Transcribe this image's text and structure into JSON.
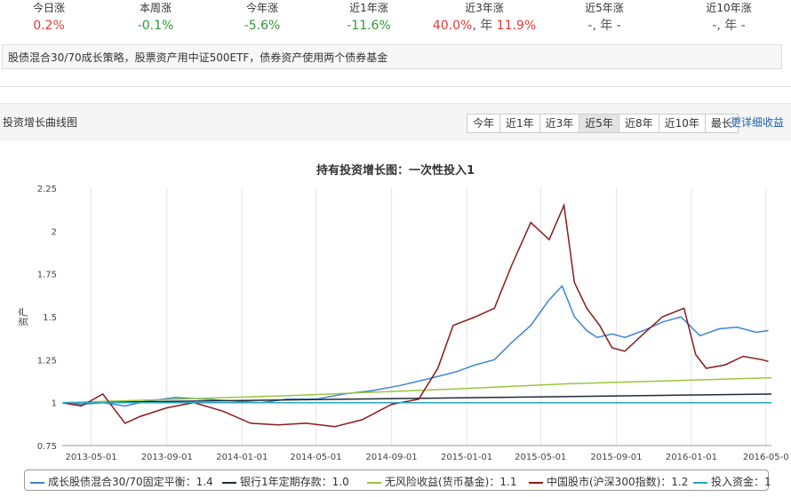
{
  "stats": [
    {
      "label": "今日涨",
      "value": "0.2%",
      "color": "red"
    },
    {
      "label": "本周涨",
      "value": "-0.1%",
      "color": "green"
    },
    {
      "label": "今年涨",
      "value": "-5.6%",
      "color": "green"
    },
    {
      "label": "近1年涨",
      "value": "-11.6%",
      "color": "green"
    },
    {
      "label": "近3年涨",
      "value": "40.0%",
      "value2": "年",
      "value3": "11.9%",
      "color": "red"
    },
    {
      "label": "近5年涨",
      "value": "-, 年 -",
      "color": "gray"
    },
    {
      "label": "近10年涨",
      "value": "-, 年 -",
      "color": "gray"
    }
  ],
  "description": "股债混合30/70成长策略，股票资产用中证500ETF，债券资产使用两个债券基金",
  "section_title": "投资增长曲线图",
  "range_buttons": [
    "今年",
    "近1年",
    "近3年",
    "近5年",
    "近8年",
    "近10年",
    "最长"
  ],
  "active_range": "近5年",
  "more_link": "更详细收益",
  "chart_data": {
    "type": "line",
    "title": "持有投资增长图：一次性投入1",
    "ylabel": "资产",
    "ylim": [
      0.75,
      2.25
    ],
    "yticks": [
      "0.75",
      "1",
      "1.25",
      "1.5",
      "1.75",
      "2",
      "2.25"
    ],
    "xlim": [
      "2013-03-15",
      "2016-05-10"
    ],
    "xticks": [
      "2013-05-01",
      "2013-09-01",
      "2014-01-01",
      "2014-05-01",
      "2014-09-01",
      "2015-01-01",
      "2015-05-01",
      "2015-09-01",
      "2016-01-01",
      "2016-05-0"
    ],
    "grid": "vertical",
    "legend": "bottom",
    "series": [
      {
        "name": "成长股债混合30/70固定平衡：1.4",
        "color": "#3b84d6",
        "x": [
          "2013-03-15",
          "2013-04-15",
          "2013-05-20",
          "2013-06-25",
          "2013-08-01",
          "2013-09-15",
          "2013-11-01",
          "2013-12-15",
          "2014-02-01",
          "2014-03-15",
          "2014-05-01",
          "2014-06-15",
          "2014-08-01",
          "2014-09-15",
          "2014-11-01",
          "2014-12-15",
          "2015-01-15",
          "2015-02-15",
          "2015-03-15",
          "2015-04-15",
          "2015-05-15",
          "2015-06-05",
          "2015-06-25",
          "2015-07-15",
          "2015-08-01",
          "2015-08-25",
          "2015-09-15",
          "2015-10-15",
          "2015-11-15",
          "2015-12-15",
          "2016-01-15",
          "2016-02-15",
          "2016-03-15",
          "2016-04-15",
          "2016-05-05"
        ],
        "y": [
          1.0,
          0.99,
          1.0,
          0.98,
          1.01,
          1.03,
          1.02,
          1.01,
          1.0,
          1.02,
          1.02,
          1.05,
          1.07,
          1.1,
          1.14,
          1.18,
          1.22,
          1.25,
          1.35,
          1.45,
          1.6,
          1.68,
          1.5,
          1.42,
          1.38,
          1.4,
          1.38,
          1.42,
          1.47,
          1.5,
          1.39,
          1.43,
          1.44,
          1.41,
          1.42
        ]
      },
      {
        "name": "银行1年定期存款：1.0",
        "color": "#1f2a36",
        "x": [
          "2013-03-15",
          "2016-05-10"
        ],
        "y": [
          1.0,
          1.05
        ]
      },
      {
        "name": "无风险收益(货币基金)：1.1",
        "color": "#9bc53d",
        "x": [
          "2013-03-15",
          "2014-03-15",
          "2014-12-15",
          "2015-06-15",
          "2016-05-10"
        ],
        "y": [
          1.0,
          1.04,
          1.08,
          1.11,
          1.145
        ]
      },
      {
        "name": "中国股市(沪深300指数)：1.2",
        "color": "#8b1a1a",
        "x": [
          "2013-03-15",
          "2013-04-15",
          "2013-05-20",
          "2013-06-25",
          "2013-07-20",
          "2013-09-01",
          "2013-10-15",
          "2013-12-01",
          "2014-01-15",
          "2014-03-01",
          "2014-04-15",
          "2014-06-01",
          "2014-07-15",
          "2014-09-01",
          "2014-10-15",
          "2014-11-15",
          "2014-12-10",
          "2015-01-15",
          "2015-02-15",
          "2015-03-15",
          "2015-04-15",
          "2015-05-15",
          "2015-06-08",
          "2015-06-25",
          "2015-07-15",
          "2015-08-05",
          "2015-08-25",
          "2015-09-15",
          "2015-10-15",
          "2015-11-15",
          "2015-12-20",
          "2016-01-08",
          "2016-01-25",
          "2016-02-25",
          "2016-03-25",
          "2016-04-25",
          "2016-05-05"
        ],
        "y": [
          1.0,
          0.98,
          1.05,
          0.88,
          0.92,
          0.97,
          1.0,
          0.95,
          0.88,
          0.87,
          0.88,
          0.86,
          0.9,
          0.99,
          1.02,
          1.2,
          1.45,
          1.5,
          1.55,
          1.8,
          2.05,
          1.95,
          2.15,
          1.7,
          1.55,
          1.45,
          1.32,
          1.3,
          1.4,
          1.5,
          1.55,
          1.28,
          1.2,
          1.22,
          1.27,
          1.25,
          1.24
        ]
      },
      {
        "name": "投入资金：1",
        "color": "#26a7bf",
        "x": [
          "2013-03-15",
          "2016-05-10"
        ],
        "y": [
          1.0,
          1.0
        ]
      }
    ]
  }
}
